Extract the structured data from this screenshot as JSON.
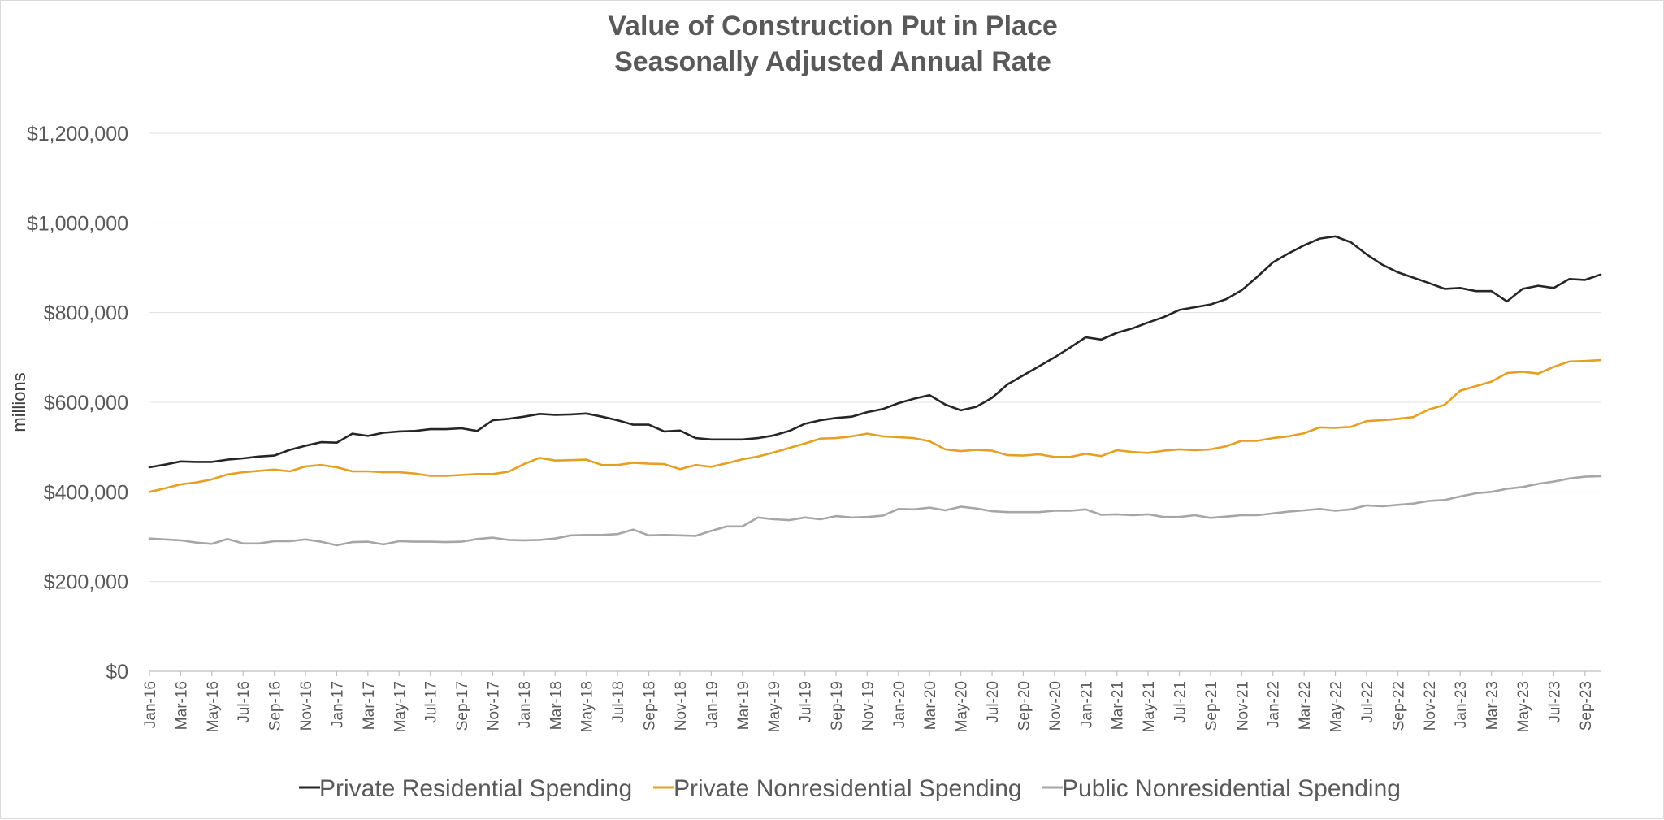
{
  "chart_data": {
    "type": "line",
    "title": "Value of Construction Put in Place",
    "subtitle": "Seasonally Adjusted Annual Rate",
    "xlabel": "",
    "ylabel": "millions",
    "ylim": [
      0,
      1200000
    ],
    "yticks": [
      "$0",
      "$200,000",
      "$400,000",
      "$600,000",
      "$800,000",
      "$1,000,000",
      "$1,200,000"
    ],
    "ytick_values": [
      0,
      200000,
      400000,
      600000,
      800000,
      1000000,
      1200000
    ],
    "grid": true,
    "legend_position": "bottom",
    "x": [
      "Jan-16",
      "Feb-16",
      "Mar-16",
      "Apr-16",
      "May-16",
      "Jun-16",
      "Jul-16",
      "Aug-16",
      "Sep-16",
      "Oct-16",
      "Nov-16",
      "Dec-16",
      "Jan-17",
      "Feb-17",
      "Mar-17",
      "Apr-17",
      "May-17",
      "Jun-17",
      "Jul-17",
      "Aug-17",
      "Sep-17",
      "Oct-17",
      "Nov-17",
      "Dec-17",
      "Jan-18",
      "Feb-18",
      "Mar-18",
      "Apr-18",
      "May-18",
      "Jun-18",
      "Jul-18",
      "Aug-18",
      "Sep-18",
      "Oct-18",
      "Nov-18",
      "Dec-18",
      "Jan-19",
      "Feb-19",
      "Mar-19",
      "Apr-19",
      "May-19",
      "Jun-19",
      "Jul-19",
      "Aug-19",
      "Sep-19",
      "Oct-19",
      "Nov-19",
      "Dec-19",
      "Jan-20",
      "Feb-20",
      "Mar-20",
      "Apr-20",
      "May-20",
      "Jun-20",
      "Jul-20",
      "Aug-20",
      "Sep-20",
      "Oct-20",
      "Nov-20",
      "Dec-20",
      "Jan-21",
      "Feb-21",
      "Mar-21",
      "Apr-21",
      "May-21",
      "Jun-21",
      "Jul-21",
      "Aug-21",
      "Sep-21",
      "Oct-21",
      "Nov-21",
      "Dec-21",
      "Jan-22",
      "Feb-22",
      "Mar-22",
      "Apr-22",
      "May-22",
      "Jun-22",
      "Jul-22",
      "Aug-22",
      "Sep-22",
      "Oct-22",
      "Nov-22",
      "Dec-22",
      "Jan-23",
      "Feb-23",
      "Mar-23",
      "Apr-23",
      "May-23",
      "Jun-23",
      "Jul-23",
      "Aug-23",
      "Sep-23",
      "Oct-23"
    ],
    "xtick_labels": [
      "Jan-16",
      "Mar-16",
      "May-16",
      "Jul-16",
      "Sep-16",
      "Nov-16",
      "Jan-17",
      "Mar-17",
      "May-17",
      "Jul-17",
      "Sep-17",
      "Nov-17",
      "Jan-18",
      "Mar-18",
      "May-18",
      "Jul-18",
      "Sep-18",
      "Nov-18",
      "Jan-19",
      "Mar-19",
      "May-19",
      "Jul-19",
      "Sep-19",
      "Nov-19",
      "Jan-20",
      "Mar-20",
      "May-20",
      "Jul-20",
      "Sep-20",
      "Nov-20",
      "Jan-21",
      "Mar-21",
      "May-21",
      "Jul-21",
      "Sep-21",
      "Nov-21",
      "Jan-22",
      "Mar-22",
      "May-22",
      "Jul-22",
      "Sep-22",
      "Nov-22",
      "Jan-23",
      "Mar-23",
      "May-23",
      "Jul-23",
      "Sep-23"
    ],
    "series": [
      {
        "name": "Private Residential Spending",
        "color": "#262626",
        "values": [
          455000,
          461000,
          468000,
          467000,
          467000,
          472000,
          475000,
          479000,
          481000,
          494000,
          503000,
          511000,
          510000,
          530000,
          525000,
          532000,
          535000,
          536000,
          540000,
          540000,
          542000,
          536000,
          560000,
          563000,
          568000,
          574000,
          572000,
          573000,
          575000,
          568000,
          560000,
          550000,
          550000,
          535000,
          537000,
          520000,
          517000,
          517000,
          517000,
          520000,
          526000,
          536000,
          552000,
          560000,
          565000,
          568000,
          578000,
          585000,
          598000,
          608000,
          616000,
          595000,
          582000,
          590000,
          610000,
          640000,
          660000,
          680000,
          700000,
          722000,
          745000,
          740000,
          755000,
          765000,
          778000,
          790000,
          806000,
          812000,
          818000,
          830000,
          850000,
          880000,
          912000,
          932000,
          950000,
          965000,
          970000,
          957000,
          930000,
          907000,
          890000,
          878000,
          866000,
          853000,
          855000,
          848000,
          848000,
          825000,
          853000,
          860000,
          855000,
          875000,
          873000,
          885000
        ]
      },
      {
        "name": "Private Nonresidential Spending",
        "color": "#e5a024",
        "values": [
          400000,
          408000,
          417000,
          421000,
          428000,
          439000,
          444000,
          447000,
          450000,
          446000,
          457000,
          460000,
          455000,
          446000,
          446000,
          444000,
          444000,
          441000,
          436000,
          436000,
          438000,
          440000,
          440000,
          445000,
          462000,
          476000,
          470000,
          471000,
          472000,
          460000,
          460000,
          465000,
          463000,
          462000,
          451000,
          460000,
          456000,
          464000,
          473000,
          479000,
          488000,
          498000,
          508000,
          519000,
          520000,
          524000,
          530000,
          524000,
          522000,
          520000,
          513000,
          495000,
          491000,
          494000,
          492000,
          482000,
          481000,
          484000,
          478000,
          478000,
          485000,
          480000,
          493000,
          489000,
          487000,
          492000,
          495000,
          493000,
          495000,
          502000,
          514000,
          514000,
          520000,
          524000,
          531000,
          544000,
          543000,
          545000,
          558000,
          560000,
          563000,
          567000,
          584000,
          594000,
          626000,
          636000,
          646000,
          665000,
          668000,
          664000,
          679000,
          691000,
          692000,
          694000
        ]
      },
      {
        "name": "Public Nonresidential Spending",
        "color": "#a6a6a6",
        "values": [
          296000,
          294000,
          292000,
          287000,
          284000,
          295000,
          285000,
          285000,
          290000,
          290000,
          294000,
          289000,
          281000,
          288000,
          289000,
          283000,
          290000,
          289000,
          289000,
          288000,
          289000,
          295000,
          298000,
          293000,
          292000,
          293000,
          296000,
          303000,
          304000,
          304000,
          306000,
          316000,
          303000,
          304000,
          303000,
          302000,
          313000,
          323000,
          323000,
          343000,
          339000,
          337000,
          343000,
          339000,
          346000,
          343000,
          344000,
          347000,
          362000,
          361000,
          365000,
          359000,
          367000,
          363000,
          357000,
          355000,
          355000,
          355000,
          358000,
          358000,
          361000,
          349000,
          350000,
          348000,
          350000,
          344000,
          344000,
          348000,
          342000,
          345000,
          348000,
          348000,
          352000,
          356000,
          359000,
          362000,
          358000,
          361000,
          370000,
          368000,
          371000,
          374000,
          380000,
          382000,
          390000,
          397000,
          400000,
          407000,
          411000,
          418000,
          423000,
          430000,
          434000,
          435000
        ]
      }
    ]
  }
}
